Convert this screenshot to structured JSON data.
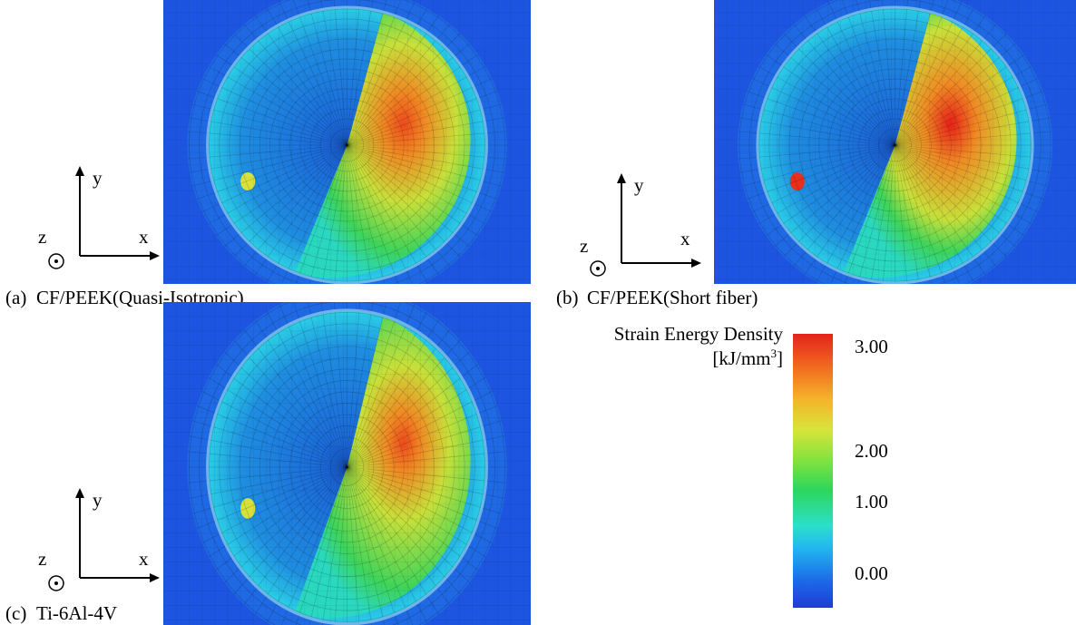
{
  "panels": [
    {
      "label": "(a)",
      "caption": "CF/PEEK(Quasi-Isotropic)",
      "axes": {
        "x": "x",
        "y": "y",
        "z": "z"
      }
    },
    {
      "label": "(b)",
      "caption": "CF/PEEK(Short fiber)",
      "axes": {
        "x": "x",
        "y": "y",
        "z": "z"
      }
    },
    {
      "label": "(c)",
      "caption": "Ti-6Al-4V",
      "axes": {
        "x": "x",
        "y": "y",
        "z": "z"
      }
    }
  ],
  "colorbar": {
    "title": "Strain Energy Density",
    "unit_prefix": "[kJ/mm",
    "unit_exponent": "3",
    "unit_suffix": "]",
    "ticks": [
      "3.00",
      "2.00",
      "1.00",
      "0.00"
    ]
  }
}
